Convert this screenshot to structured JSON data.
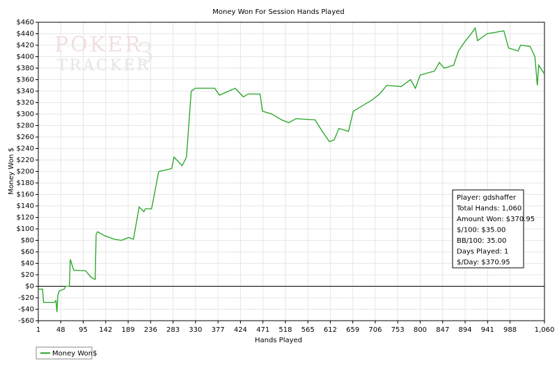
{
  "chart_data": {
    "type": "line",
    "title": "Money Won For Session Hands Played",
    "x_label": "Hands Played",
    "y_label": "Money Won $",
    "watermark": [
      "POKER",
      "TRACKER",
      "3"
    ],
    "xlim": [
      1,
      1060
    ],
    "ylim": [
      -60,
      460
    ],
    "xticks": [
      1,
      48,
      95,
      142,
      189,
      236,
      283,
      330,
      377,
      424,
      471,
      518,
      565,
      612,
      659,
      706,
      753,
      800,
      847,
      894,
      941,
      988,
      {
        "value": 1060,
        "label": "1,060"
      }
    ],
    "yticks": [
      {
        "value": -60,
        "label": "-$60"
      },
      {
        "value": -40,
        "label": "-$40"
      },
      {
        "value": -20,
        "label": "-$20"
      },
      {
        "value": 0,
        "label": "$0"
      },
      {
        "value": 20,
        "label": "$20"
      },
      {
        "value": 40,
        "label": "$40"
      },
      {
        "value": 60,
        "label": "$60"
      },
      {
        "value": 80,
        "label": "$80"
      },
      {
        "value": 100,
        "label": "$100"
      },
      {
        "value": 120,
        "label": "$120"
      },
      {
        "value": 140,
        "label": "$140"
      },
      {
        "value": 160,
        "label": "$160"
      },
      {
        "value": 180,
        "label": "$180"
      },
      {
        "value": 200,
        "label": "$200"
      },
      {
        "value": 220,
        "label": "$220"
      },
      {
        "value": 240,
        "label": "$240"
      },
      {
        "value": 260,
        "label": "$260"
      },
      {
        "value": 280,
        "label": "$280"
      },
      {
        "value": 300,
        "label": "$300"
      },
      {
        "value": 320,
        "label": "$320"
      },
      {
        "value": 340,
        "label": "$340"
      },
      {
        "value": 360,
        "label": "$360"
      },
      {
        "value": 380,
        "label": "$380"
      },
      {
        "value": 400,
        "label": "$400"
      },
      {
        "value": 420,
        "label": "$420"
      },
      {
        "value": 440,
        "label": "$440"
      },
      {
        "value": 460,
        "label": "$460"
      }
    ],
    "grid": true,
    "x": [
      1,
      10,
      12,
      35,
      38,
      40,
      42,
      45,
      55,
      58,
      66,
      68,
      75,
      100,
      112,
      120,
      122,
      125,
      140,
      160,
      175,
      190,
      200,
      212,
      222,
      225,
      238,
      253,
      280,
      285,
      302,
      311,
      321,
      330,
      370,
      380,
      413,
      430,
      440,
      465,
      470,
      490,
      510,
      525,
      540,
      580,
      595,
      610,
      620,
      630,
      650,
      660,
      680,
      700,
      715,
      730,
      760,
      780,
      790,
      800,
      830,
      840,
      850,
      870,
      880,
      895,
      905,
      915,
      920,
      940,
      975,
      985,
      1005,
      1010,
      1030,
      1040,
      1045,
      1048,
      1060
    ],
    "series": [
      {
        "name": "Money Won$",
        "color": "#21a321",
        "values": [
          -5,
          -5,
          -28,
          -28,
          -25,
          -45,
          -15,
          -8,
          -5,
          0,
          0,
          47,
          28,
          27,
          15,
          12,
          90,
          95,
          88,
          82,
          80,
          85,
          82,
          138,
          130,
          135,
          135,
          200,
          205,
          225,
          210,
          225,
          340,
          345,
          345,
          333,
          345,
          330,
          335,
          335,
          305,
          300,
          290,
          285,
          292,
          290,
          270,
          252,
          255,
          275,
          270,
          305,
          315,
          325,
          335,
          350,
          348,
          360,
          345,
          368,
          375,
          390,
          380,
          385,
          410,
          428,
          438,
          450,
          428,
          440,
          445,
          415,
          410,
          420,
          418,
          400,
          350,
          385,
          370
        ]
      }
    ],
    "info_box": [
      "Player: gdshaffer",
      "Total Hands: 1,060",
      "Amount Won: $370.95",
      "$/100: $35.00",
      "BB/100: 35.00",
      "Days Played: 1",
      "$/Day: $370.95"
    ]
  }
}
